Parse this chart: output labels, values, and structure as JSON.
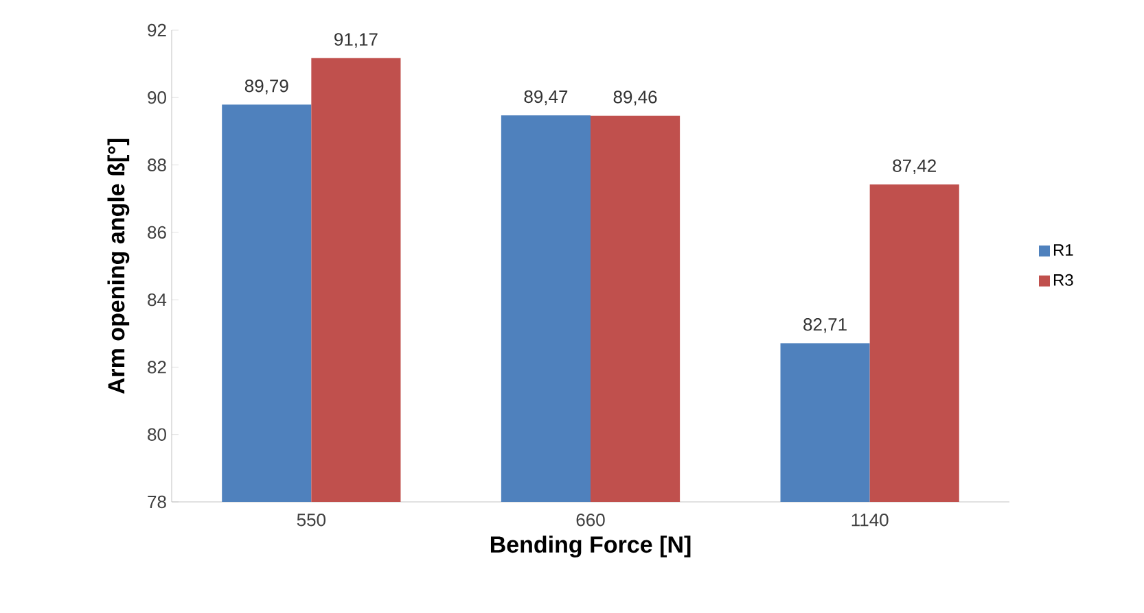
{
  "chart_data": {
    "type": "bar",
    "xlabel": "Bending Force [N]",
    "ylabel": "Arm opening angle ß[°]",
    "categories": [
      "550",
      "660",
      "1140"
    ],
    "series": [
      {
        "name": "R1",
        "color": "#4f81bd",
        "values": [
          89.79,
          89.47,
          82.71
        ],
        "value_labels": [
          "89,79",
          "89,47",
          "82,71"
        ]
      },
      {
        "name": "R3",
        "color": "#c0504d",
        "values": [
          91.17,
          89.46,
          87.42
        ],
        "value_labels": [
          "91,17",
          "89,46",
          "87,42"
        ]
      }
    ],
    "ylim": [
      78,
      92
    ],
    "yticks": [
      78,
      80,
      82,
      84,
      86,
      88,
      90,
      92
    ],
    "grid": false,
    "legend": "right"
  }
}
